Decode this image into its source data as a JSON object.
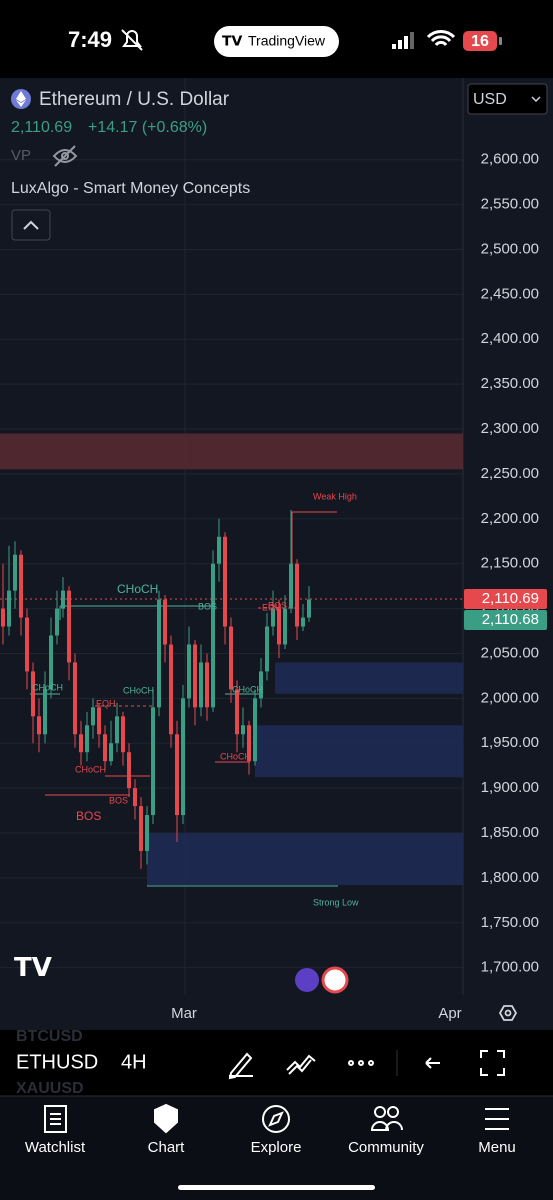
{
  "status_bar": {
    "time": "7:49",
    "app": "TradingView",
    "battery": "16"
  },
  "chart": {
    "symbol": "Ethereum / U.S. Dollar",
    "price": "2,110.69",
    "change": "+14.17 (+0.68%)",
    "vp": "VP",
    "indicator": "LuxAlgo - Smart Money Concepts",
    "currency": "USD",
    "ylim": [
      1664,
      2691
    ],
    "yticks": [
      {
        "value": 2600,
        "label": "2,600.00"
      },
      {
        "value": 2550,
        "label": "2,550.00"
      },
      {
        "value": 2500,
        "label": "2,500.00"
      },
      {
        "value": 2450,
        "label": "2,450.00"
      },
      {
        "value": 2400,
        "label": "2,400.00"
      },
      {
        "value": 2350,
        "label": "2,350.00"
      },
      {
        "value": 2300,
        "label": "2,300.00"
      },
      {
        "value": 2250,
        "label": "2,250.00"
      },
      {
        "value": 2200,
        "label": "2,200.00"
      },
      {
        "value": 2150,
        "label": "2,150.00"
      },
      {
        "value": 2100,
        "label": "2,100.00"
      },
      {
        "value": 2050,
        "label": "2,050.00"
      },
      {
        "value": 2000,
        "label": "2,000.00"
      },
      {
        "value": 1950,
        "label": "1,950.00"
      },
      {
        "value": 1900,
        "label": "1,900.00"
      },
      {
        "value": 1850,
        "label": "1,850.00"
      },
      {
        "value": 1800,
        "label": "1,800.00"
      },
      {
        "value": 1750,
        "label": "1,750.00"
      },
      {
        "value": 1700,
        "label": "1,700.00"
      }
    ],
    "last_price": [
      {
        "value": 2110.69,
        "label": "2,110.69",
        "color": "#e5484d"
      },
      {
        "value": 2110.68,
        "label": "2,110.68",
        "color": "#3a9e84"
      }
    ],
    "x_labels": [
      "Mar",
      "Apr"
    ],
    "up_color": "#3a9e84",
    "down_color": "#e5484d",
    "candles": [
      [
        2100,
        2150,
        2060,
        2080
      ],
      [
        2080,
        2170,
        2070,
        2120
      ],
      [
        2120,
        2175,
        2100,
        2160
      ],
      [
        2160,
        2165,
        2070,
        2090
      ],
      [
        2090,
        2100,
        2010,
        2030
      ],
      [
        2030,
        2040,
        1950,
        1980
      ],
      [
        1980,
        2000,
        1940,
        1960
      ],
      [
        1960,
        2030,
        1950,
        2010
      ],
      [
        2010,
        2090,
        2000,
        2070
      ],
      [
        2070,
        2120,
        2060,
        2100
      ],
      [
        2100,
        2135,
        2090,
        2120
      ],
      [
        2120,
        2125,
        2020,
        2040
      ],
      [
        2040,
        2050,
        1945,
        1960
      ],
      [
        1960,
        1975,
        1925,
        1940
      ],
      [
        1940,
        1985,
        1930,
        1970
      ],
      [
        1970,
        2000,
        1955,
        1990
      ],
      [
        1990,
        1995,
        1945,
        1960
      ],
      [
        1960,
        1970,
        1920,
        1930
      ],
      [
        1930,
        1975,
        1925,
        1950
      ],
      [
        1950,
        1995,
        1940,
        1980
      ],
      [
        1980,
        1985,
        1925,
        1940
      ],
      [
        1940,
        1950,
        1890,
        1900
      ],
      [
        1900,
        1910,
        1865,
        1880
      ],
      [
        1880,
        1890,
        1810,
        1830
      ],
      [
        1830,
        1880,
        1815,
        1870
      ],
      [
        1870,
        2010,
        1860,
        1990
      ],
      [
        1990,
        2120,
        1980,
        2110
      ],
      [
        2110,
        2115,
        2040,
        2060
      ],
      [
        2060,
        2070,
        1945,
        1960
      ],
      [
        1960,
        1975,
        1840,
        1870
      ],
      [
        1870,
        2015,
        1860,
        2000
      ],
      [
        2000,
        2080,
        1990,
        2060
      ],
      [
        2060,
        2065,
        1970,
        1990
      ],
      [
        1990,
        2060,
        1980,
        2040
      ],
      [
        2040,
        2050,
        1975,
        1990
      ],
      [
        1990,
        2165,
        1985,
        2150
      ],
      [
        2150,
        2200,
        2130,
        2180
      ],
      [
        2180,
        2185,
        2060,
        2080
      ],
      [
        2080,
        2090,
        1995,
        2010
      ],
      [
        2010,
        2020,
        1940,
        1960
      ],
      [
        1960,
        1990,
        1945,
        1970
      ],
      [
        1970,
        1975,
        1915,
        1930
      ],
      [
        1930,
        2010,
        1925,
        2000
      ],
      [
        2000,
        2045,
        1990,
        2030
      ],
      [
        2030,
        2095,
        2020,
        2080
      ],
      [
        2080,
        2120,
        2070,
        2100
      ],
      [
        2100,
        2110,
        2045,
        2060
      ],
      [
        2060,
        2115,
        2055,
        2100
      ],
      [
        2100,
        2210,
        2095,
        2150
      ],
      [
        2150,
        2155,
        2065,
        2080
      ],
      [
        2080,
        2105,
        2075,
        2090
      ],
      [
        2090,
        2125,
        2085,
        2110
      ]
    ],
    "zones": [
      {
        "top": 2295,
        "bottom": 2255,
        "color": "#5a2a31"
      },
      {
        "top": 2040,
        "bottom": 2005,
        "color": "#1f2c55"
      },
      {
        "top": 1970,
        "bottom": 1912,
        "color": "#1f2c55"
      },
      {
        "top": 1850,
        "bottom": 1792,
        "color": "#1f2c55"
      }
    ],
    "annotations": [
      "Weak High",
      "CHoCH",
      "BOS",
      "EQH",
      "BOS",
      "CHoCH",
      "EQH",
      "CHoCH",
      "CHoCH",
      "CHoCH",
      "CHoCH",
      "BOS",
      "BOS",
      "Strong Low"
    ]
  },
  "toolbar": {
    "symbol": "ETHUSD",
    "interval": "4H",
    "ghost": [
      "BTCUSD",
      "XAUUSD"
    ]
  },
  "tabs": [
    "Watchlist",
    "Chart",
    "Explore",
    "Community",
    "Menu"
  ]
}
